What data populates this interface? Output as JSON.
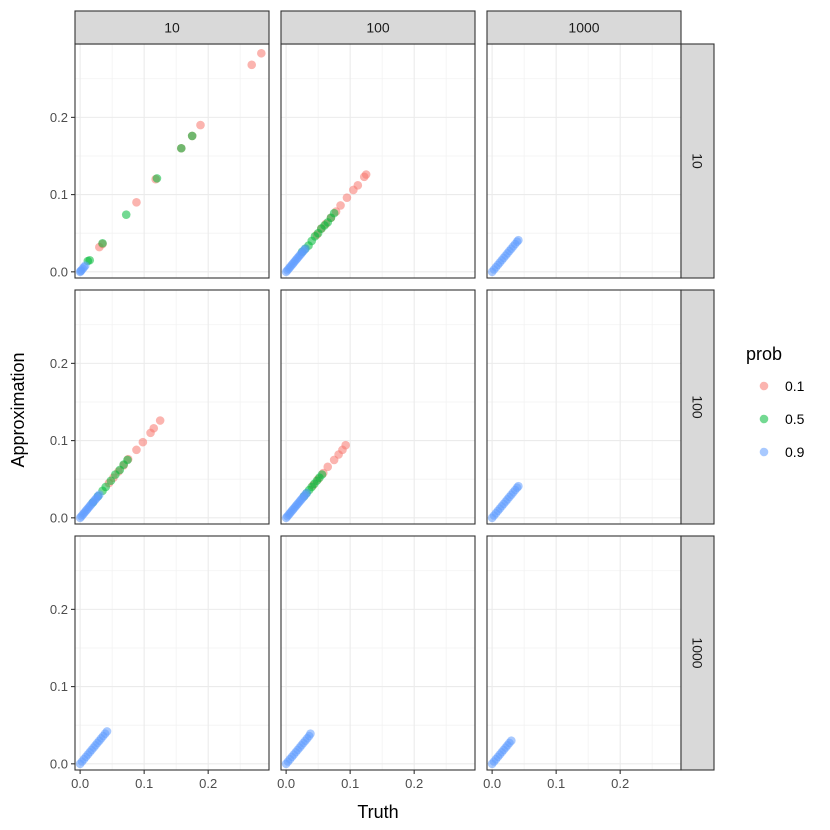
{
  "chart_data": {
    "type": "scatter",
    "facet_cols": [
      "10",
      "100",
      "1000"
    ],
    "facet_rows": [
      "10",
      "100",
      "1000"
    ],
    "xlabel": "Truth",
    "ylabel": "Approximation",
    "xlim": [
      -0.008,
      0.295
    ],
    "ylim": [
      -0.008,
      0.295
    ],
    "x_ticks": [
      0.0,
      0.1,
      0.2
    ],
    "x_tick_labels": [
      "0.0",
      "0.1",
      "0.2"
    ],
    "y_ticks": [
      0.0,
      0.1,
      0.2
    ],
    "y_tick_labels": [
      "0.0",
      "0.1",
      "0.2"
    ],
    "grid": true,
    "legend": {
      "title": "prob",
      "position": "right",
      "entries": [
        {
          "label": "0.1",
          "color": "#F8766D"
        },
        {
          "label": "0.5",
          "color": "#00BA38"
        },
        {
          "label": "0.9",
          "color": "#619CFF"
        }
      ]
    },
    "panels": [
      {
        "col": "10",
        "row": "10",
        "series": [
          {
            "prob": "0.1",
            "points": [
              [
                0.268,
                0.268
              ],
              [
                0.283,
                0.283
              ],
              [
                0.188,
                0.19
              ],
              [
                0.088,
                0.09
              ],
              [
                0.03,
                0.032
              ],
              [
                0.118,
                0.12
              ],
              [
                0.175,
                0.176
              ],
              [
                0.158,
                0.16
              ],
              [
                0.035,
                0.036
              ]
            ]
          },
          {
            "prob": "0.5",
            "points": [
              [
                0.012,
                0.014
              ],
              [
                0.035,
                0.037
              ],
              [
                0.072,
                0.074
              ],
              [
                0.12,
                0.121
              ],
              [
                0.158,
                0.16
              ],
              [
                0.175,
                0.176
              ],
              [
                0.015,
                0.015
              ]
            ]
          },
          {
            "prob": "0.9",
            "points": [
              [
                0.0,
                0.0
              ],
              [
                0.002,
                0.002
              ],
              [
                0.004,
                0.004
              ],
              [
                0.006,
                0.006
              ],
              [
                0.008,
                0.008
              ],
              [
                0.001,
                0.001
              ]
            ]
          }
        ]
      },
      {
        "col": "100",
        "row": "10",
        "series": [
          {
            "prob": "0.1",
            "points": [
              [
                0.125,
                0.126
              ],
              [
                0.122,
                0.123
              ],
              [
                0.112,
                0.112
              ],
              [
                0.105,
                0.106
              ],
              [
                0.095,
                0.096
              ],
              [
                0.085,
                0.086
              ],
              [
                0.078,
                0.078
              ],
              [
                0.07,
                0.07
              ],
              [
                0.062,
                0.062
              ],
              [
                0.055,
                0.056
              ],
              [
                0.048,
                0.048
              ]
            ]
          },
          {
            "prob": "0.5",
            "points": [
              [
                0.075,
                0.076
              ],
              [
                0.07,
                0.07
              ],
              [
                0.065,
                0.064
              ],
              [
                0.06,
                0.06
              ],
              [
                0.055,
                0.056
              ],
              [
                0.05,
                0.05
              ],
              [
                0.045,
                0.046
              ],
              [
                0.04,
                0.04
              ],
              [
                0.035,
                0.034
              ],
              [
                0.03,
                0.03
              ],
              [
                0.025,
                0.026
              ]
            ]
          },
          {
            "prob": "0.9",
            "points": [
              [
                0.0,
                0.0
              ],
              [
                0.002,
                0.002
              ],
              [
                0.004,
                0.004
              ],
              [
                0.006,
                0.006
              ],
              [
                0.008,
                0.008
              ],
              [
                0.01,
                0.01
              ],
              [
                0.012,
                0.012
              ],
              [
                0.014,
                0.014
              ],
              [
                0.016,
                0.016
              ],
              [
                0.018,
                0.018
              ],
              [
                0.02,
                0.02
              ],
              [
                0.022,
                0.022
              ],
              [
                0.024,
                0.024
              ],
              [
                0.026,
                0.026
              ],
              [
                0.028,
                0.028
              ],
              [
                0.03,
                0.03
              ]
            ]
          }
        ]
      },
      {
        "col": "1000",
        "row": "10",
        "series": [
          {
            "prob": "0.9",
            "points": [
              [
                0.0,
                0.0
              ],
              [
                0.003,
                0.003
              ],
              [
                0.006,
                0.006
              ],
              [
                0.009,
                0.009
              ],
              [
                0.012,
                0.012
              ],
              [
                0.015,
                0.015
              ],
              [
                0.018,
                0.018
              ],
              [
                0.021,
                0.021
              ],
              [
                0.024,
                0.024
              ],
              [
                0.027,
                0.027
              ],
              [
                0.03,
                0.03
              ],
              [
                0.033,
                0.033
              ],
              [
                0.036,
                0.036
              ],
              [
                0.039,
                0.039
              ],
              [
                0.041,
                0.041
              ]
            ]
          }
        ]
      },
      {
        "col": "10",
        "row": "100",
        "series": [
          {
            "prob": "0.1",
            "points": [
              [
                0.125,
                0.126
              ],
              [
                0.115,
                0.116
              ],
              [
                0.11,
                0.11
              ],
              [
                0.098,
                0.098
              ],
              [
                0.088,
                0.088
              ],
              [
                0.075,
                0.076
              ],
              [
                0.068,
                0.068
              ],
              [
                0.06,
                0.06
              ],
              [
                0.052,
                0.052
              ],
              [
                0.045,
                0.045
              ]
            ]
          },
          {
            "prob": "0.5",
            "points": [
              [
                0.074,
                0.075
              ],
              [
                0.068,
                0.069
              ],
              [
                0.062,
                0.062
              ],
              [
                0.055,
                0.056
              ],
              [
                0.048,
                0.048
              ],
              [
                0.04,
                0.04
              ],
              [
                0.035,
                0.035
              ],
              [
                0.028,
                0.028
              ],
              [
                0.02,
                0.02
              ]
            ]
          },
          {
            "prob": "0.9",
            "points": [
              [
                0.0,
                0.0
              ],
              [
                0.002,
                0.002
              ],
              [
                0.004,
                0.004
              ],
              [
                0.006,
                0.006
              ],
              [
                0.008,
                0.008
              ],
              [
                0.01,
                0.01
              ],
              [
                0.012,
                0.012
              ],
              [
                0.014,
                0.014
              ],
              [
                0.016,
                0.016
              ],
              [
                0.018,
                0.018
              ],
              [
                0.02,
                0.02
              ],
              [
                0.022,
                0.022
              ],
              [
                0.024,
                0.024
              ],
              [
                0.026,
                0.026
              ],
              [
                0.028,
                0.028
              ],
              [
                0.03,
                0.03
              ]
            ]
          }
        ]
      },
      {
        "col": "100",
        "row": "100",
        "series": [
          {
            "prob": "0.1",
            "points": [
              [
                0.093,
                0.094
              ],
              [
                0.088,
                0.088
              ],
              [
                0.082,
                0.082
              ],
              [
                0.075,
                0.075
              ],
              [
                0.065,
                0.066
              ],
              [
                0.058,
                0.058
              ],
              [
                0.05,
                0.05
              ],
              [
                0.042,
                0.042
              ]
            ]
          },
          {
            "prob": "0.5",
            "points": [
              [
                0.056,
                0.056
              ],
              [
                0.052,
                0.052
              ],
              [
                0.048,
                0.048
              ],
              [
                0.044,
                0.044
              ],
              [
                0.04,
                0.04
              ],
              [
                0.036,
                0.036
              ],
              [
                0.032,
                0.032
              ],
              [
                0.028,
                0.028
              ]
            ]
          },
          {
            "prob": "0.9",
            "points": [
              [
                0.0,
                0.0
              ],
              [
                0.002,
                0.002
              ],
              [
                0.004,
                0.004
              ],
              [
                0.006,
                0.006
              ],
              [
                0.008,
                0.008
              ],
              [
                0.01,
                0.01
              ],
              [
                0.012,
                0.012
              ],
              [
                0.014,
                0.014
              ],
              [
                0.016,
                0.016
              ],
              [
                0.018,
                0.018
              ],
              [
                0.02,
                0.02
              ],
              [
                0.022,
                0.022
              ],
              [
                0.024,
                0.024
              ],
              [
                0.026,
                0.026
              ],
              [
                0.028,
                0.028
              ],
              [
                0.03,
                0.03
              ],
              [
                0.032,
                0.032
              ]
            ]
          }
        ]
      },
      {
        "col": "1000",
        "row": "100",
        "series": [
          {
            "prob": "0.9",
            "points": [
              [
                0.0,
                0.0
              ],
              [
                0.003,
                0.003
              ],
              [
                0.006,
                0.006
              ],
              [
                0.009,
                0.009
              ],
              [
                0.012,
                0.012
              ],
              [
                0.015,
                0.015
              ],
              [
                0.018,
                0.018
              ],
              [
                0.021,
                0.021
              ],
              [
                0.024,
                0.024
              ],
              [
                0.027,
                0.027
              ],
              [
                0.03,
                0.03
              ],
              [
                0.033,
                0.033
              ],
              [
                0.036,
                0.036
              ],
              [
                0.039,
                0.039
              ],
              [
                0.041,
                0.041
              ]
            ]
          }
        ]
      },
      {
        "col": "10",
        "row": "1000",
        "series": [
          {
            "prob": "0.9",
            "points": [
              [
                0.0,
                0.0
              ],
              [
                0.003,
                0.003
              ],
              [
                0.006,
                0.006
              ],
              [
                0.009,
                0.009
              ],
              [
                0.012,
                0.012
              ],
              [
                0.015,
                0.015
              ],
              [
                0.018,
                0.018
              ],
              [
                0.021,
                0.021
              ],
              [
                0.024,
                0.024
              ],
              [
                0.027,
                0.027
              ],
              [
                0.03,
                0.03
              ],
              [
                0.033,
                0.033
              ],
              [
                0.036,
                0.036
              ],
              [
                0.039,
                0.039
              ],
              [
                0.042,
                0.042
              ]
            ]
          }
        ]
      },
      {
        "col": "100",
        "row": "1000",
        "series": [
          {
            "prob": "0.9",
            "points": [
              [
                0.0,
                0.0
              ],
              [
                0.003,
                0.003
              ],
              [
                0.006,
                0.006
              ],
              [
                0.009,
                0.009
              ],
              [
                0.012,
                0.012
              ],
              [
                0.015,
                0.015
              ],
              [
                0.018,
                0.018
              ],
              [
                0.021,
                0.021
              ],
              [
                0.024,
                0.024
              ],
              [
                0.027,
                0.027
              ],
              [
                0.03,
                0.03
              ],
              [
                0.033,
                0.033
              ],
              [
                0.036,
                0.036
              ],
              [
                0.038,
                0.039
              ]
            ]
          }
        ]
      },
      {
        "col": "1000",
        "row": "1000",
        "series": [
          {
            "prob": "0.9",
            "points": [
              [
                0.0,
                0.0
              ],
              [
                0.003,
                0.003
              ],
              [
                0.006,
                0.006
              ],
              [
                0.009,
                0.009
              ],
              [
                0.012,
                0.012
              ],
              [
                0.015,
                0.015
              ],
              [
                0.018,
                0.018
              ],
              [
                0.021,
                0.021
              ],
              [
                0.024,
                0.024
              ],
              [
                0.027,
                0.027
              ],
              [
                0.03,
                0.03
              ]
            ]
          }
        ]
      }
    ]
  }
}
